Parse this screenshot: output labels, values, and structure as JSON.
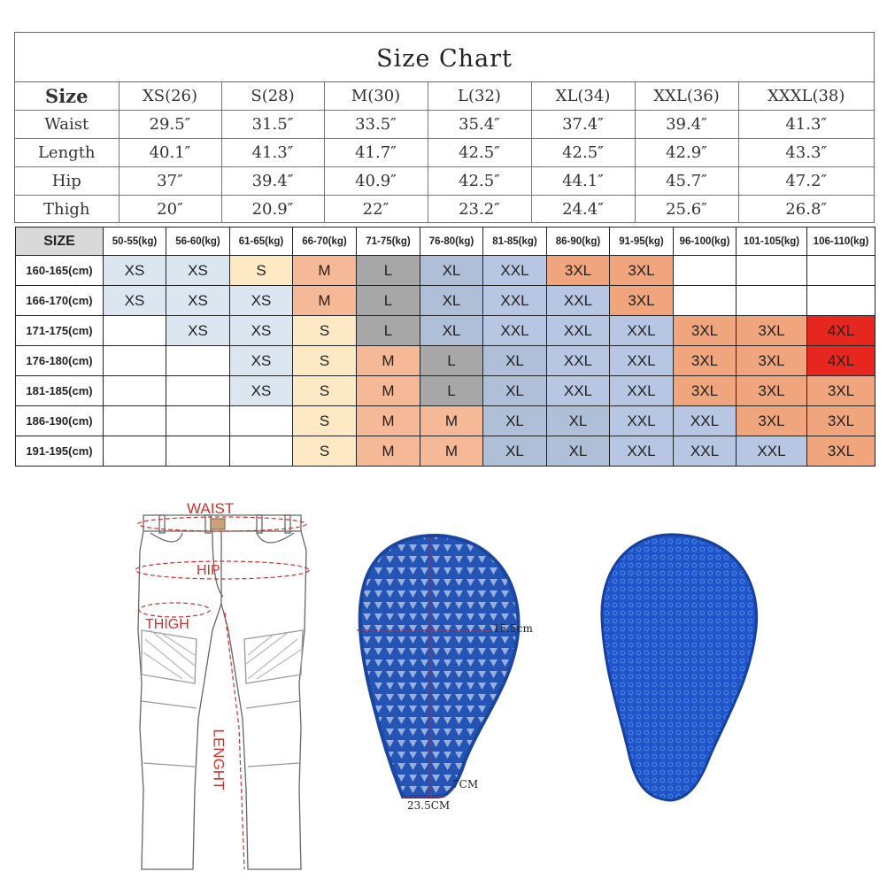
{
  "size_chart": {
    "title": "Size Chart",
    "header_label": "Size",
    "sizes": [
      "XS(26)",
      "S(28)",
      "M(30)",
      "L(32)",
      "XL(34)",
      "XXL(36)",
      "XXXL(38)"
    ],
    "rows": [
      {
        "label": "Waist",
        "values": [
          "29.5″",
          "31.5″",
          "33.5″",
          "35.4″",
          "37.4″",
          "39.4″",
          "41.3″"
        ]
      },
      {
        "label": "Length",
        "values": [
          "40.1″",
          "41.3″",
          "41.7″",
          "42.5″",
          "42.5″",
          "42.9″",
          "43.3″"
        ]
      },
      {
        "label": "Hip",
        "values": [
          "37″",
          "39.4″",
          "40.9″",
          "42.5″",
          "44.1″",
          "45.7″",
          "47.2″"
        ]
      },
      {
        "label": "Thigh",
        "values": [
          "20″",
          "20.9″",
          "22″",
          "23.2″",
          "24.4″",
          "25.6″",
          "26.8″"
        ]
      }
    ]
  },
  "weight_grid": {
    "corner_label": "SIZE",
    "weights": [
      "50-55(kg)",
      "56-60(kg)",
      "61-65(kg)",
      "66-70(kg)",
      "71-75(kg)",
      "76-80(kg)",
      "81-85(kg)",
      "86-90(kg)",
      "91-95(kg)",
      "96-100(kg)",
      "101-105(kg)",
      "106-110(kg)"
    ],
    "rows": [
      {
        "height": "160-165(cm)",
        "cells": [
          "XS",
          "XS",
          "S",
          "M",
          "L",
          "XL",
          "XXL",
          "3XL",
          "3XL",
          "",
          "",
          ""
        ]
      },
      {
        "height": "166-170(cm)",
        "cells": [
          "XS",
          "XS",
          "XS",
          "M",
          "L",
          "XL",
          "XXL",
          "XXL",
          "3XL",
          "",
          "",
          ""
        ]
      },
      {
        "height": "171-175(cm)",
        "cells": [
          "",
          "XS",
          "XS",
          "S",
          "L",
          "XL",
          "XXL",
          "XXL",
          "XXL",
          "3XL",
          "3XL",
          "4XL"
        ]
      },
      {
        "height": "176-180(cm)",
        "cells": [
          "",
          "",
          "XS",
          "S",
          "M",
          "L",
          "XL",
          "XXL",
          "XXL",
          "3XL",
          "3XL",
          "4XL"
        ]
      },
      {
        "height": "181-185(cm)",
        "cells": [
          "",
          "",
          "XS",
          "S",
          "M",
          "L",
          "XL",
          "XXL",
          "XXL",
          "3XL",
          "3XL",
          "3XL"
        ]
      },
      {
        "height": "186-190(cm)",
        "cells": [
          "",
          "",
          "",
          "S",
          "M",
          "M",
          "XL",
          "XL",
          "XXL",
          "XXL",
          "3XL",
          "3XL"
        ]
      },
      {
        "height": "191-195(cm)",
        "cells": [
          "",
          "",
          "",
          "S",
          "M",
          "M",
          "XL",
          "XL",
          "XXL",
          "XXL",
          "XXL",
          "3XL"
        ]
      }
    ],
    "colors": {
      "XS": "#dce6f1",
      "S": "#fde9c4",
      "M": "#f5b998",
      "L": "#a7a7a7",
      "XL": "#afbfd7",
      "XXL": "#b7c6e3",
      "3XL": "#f1a57c",
      "4XL": "#e6261f"
    }
  },
  "pants_diagram": {
    "waist_label": "WAIST",
    "hip_label": "HIP",
    "thigh_label": "THIGH",
    "length_label": "LENGHT"
  },
  "pad_diagram": {
    "width_label": "15.5cm",
    "bottom_label": "7CM",
    "height_label": "23.5CM"
  }
}
